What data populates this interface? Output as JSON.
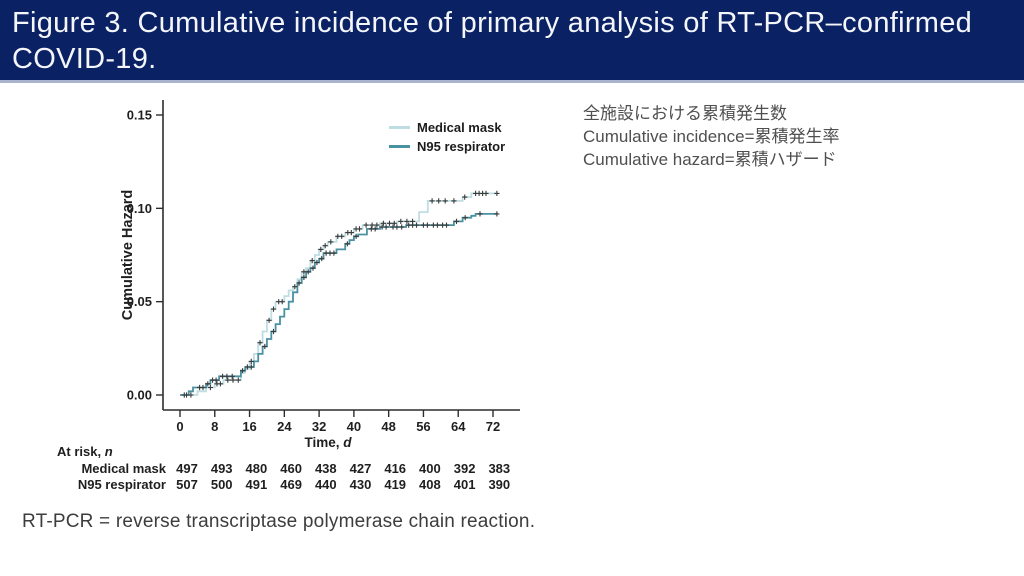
{
  "header": {
    "title": "Figure 3. Cumulative incidence of primary analysis of RT-PCR–confirmed COVID-19.",
    "bg": "#0a2164"
  },
  "notes": {
    "line1": "全施設における累積発生数",
    "line2": "Cumulative incidence=累積発生率",
    "line3": "Cumulative hazard=累積ハザード"
  },
  "footnote": "RT-PCR = reverse transcriptase polymerase chain reaction.",
  "chart_data": {
    "type": "line",
    "subtype": "kaplan-meier-cumulative-hazard-step",
    "title": "",
    "ylabel": "Cumulative Hazard",
    "xlabel_prefix": "Time, ",
    "xlabel_italic": "d",
    "xlim": [
      0,
      72
    ],
    "ylim": [
      0,
      0.15
    ],
    "xticks": [
      0,
      8,
      16,
      24,
      32,
      40,
      48,
      56,
      64,
      72
    ],
    "yticks": [
      "0.00",
      "0.05",
      "0.10",
      "0.15"
    ],
    "grid": false,
    "legend_position": "top-right",
    "axis_color": "#2d2d2d",
    "censor_color": "#3b3b3b",
    "series": [
      {
        "name": "Medical mask",
        "color": "#bedee3",
        "steps": [
          [
            0,
            0
          ],
          [
            4,
            0.002
          ],
          [
            6,
            0.004
          ],
          [
            8,
            0.006
          ],
          [
            10,
            0.008
          ],
          [
            14,
            0.012
          ],
          [
            15,
            0.014
          ],
          [
            16,
            0.018
          ],
          [
            17,
            0.022
          ],
          [
            18,
            0.028
          ],
          [
            19,
            0.034
          ],
          [
            20,
            0.04
          ],
          [
            21,
            0.046
          ],
          [
            22,
            0.05
          ],
          [
            24,
            0.053
          ],
          [
            25,
            0.056
          ],
          [
            26,
            0.058
          ],
          [
            27,
            0.062
          ],
          [
            28,
            0.066
          ],
          [
            29,
            0.068
          ],
          [
            30,
            0.072
          ],
          [
            31,
            0.075
          ],
          [
            32,
            0.078
          ],
          [
            33,
            0.08
          ],
          [
            34,
            0.082
          ],
          [
            36,
            0.085
          ],
          [
            38,
            0.087
          ],
          [
            40,
            0.089
          ],
          [
            42,
            0.091
          ],
          [
            46,
            0.092
          ],
          [
            50,
            0.093
          ],
          [
            55,
            0.098
          ],
          [
            57,
            0.104
          ],
          [
            65,
            0.106
          ],
          [
            67,
            0.108
          ],
          [
            73,
            0.108
          ]
        ],
        "censors": [
          [
            1.5,
            0
          ],
          [
            2.5,
            0
          ],
          [
            7,
            0.004
          ],
          [
            8.5,
            0.006
          ],
          [
            9.3,
            0.006
          ],
          [
            11,
            0.008
          ],
          [
            12.2,
            0.008
          ],
          [
            13.4,
            0.008
          ],
          [
            16.4,
            0.018
          ],
          [
            18.4,
            0.028
          ],
          [
            20.5,
            0.04
          ],
          [
            21.5,
            0.046
          ],
          [
            22.7,
            0.05
          ],
          [
            23.5,
            0.05
          ],
          [
            26.4,
            0.058
          ],
          [
            28.5,
            0.066
          ],
          [
            30.4,
            0.072
          ],
          [
            32.4,
            0.078
          ],
          [
            33.4,
            0.08
          ],
          [
            34.7,
            0.082
          ],
          [
            36.3,
            0.085
          ],
          [
            37.2,
            0.085
          ],
          [
            38.6,
            0.087
          ],
          [
            39.4,
            0.087
          ],
          [
            40.5,
            0.089
          ],
          [
            41.3,
            0.089
          ],
          [
            42.8,
            0.091
          ],
          [
            44.2,
            0.091
          ],
          [
            45.3,
            0.091
          ],
          [
            46.8,
            0.092
          ],
          [
            48.2,
            0.092
          ],
          [
            49.3,
            0.092
          ],
          [
            50.8,
            0.093
          ],
          [
            52.2,
            0.093
          ],
          [
            53.5,
            0.093
          ],
          [
            58,
            0.104
          ],
          [
            59.5,
            0.104
          ],
          [
            61,
            0.104
          ],
          [
            63,
            0.104
          ],
          [
            65.5,
            0.106
          ],
          [
            68,
            0.108
          ],
          [
            68.8,
            0.108
          ],
          [
            69.6,
            0.108
          ],
          [
            70.4,
            0.108
          ],
          [
            72.9,
            0.108
          ]
        ]
      },
      {
        "name": "N95 respirator",
        "color": "#4a92a1",
        "steps": [
          [
            0,
            0
          ],
          [
            2,
            0.002
          ],
          [
            3,
            0.004
          ],
          [
            6,
            0.006
          ],
          [
            7,
            0.008
          ],
          [
            9,
            0.01
          ],
          [
            14,
            0.013
          ],
          [
            15,
            0.015
          ],
          [
            17,
            0.018
          ],
          [
            18,
            0.022
          ],
          [
            19,
            0.026
          ],
          [
            20,
            0.03
          ],
          [
            21,
            0.034
          ],
          [
            22,
            0.038
          ],
          [
            23,
            0.042
          ],
          [
            24,
            0.046
          ],
          [
            25,
            0.05
          ],
          [
            26,
            0.055
          ],
          [
            27,
            0.06
          ],
          [
            28,
            0.063
          ],
          [
            29,
            0.066
          ],
          [
            30,
            0.068
          ],
          [
            31,
            0.071
          ],
          [
            32,
            0.073
          ],
          [
            33,
            0.076
          ],
          [
            36,
            0.078
          ],
          [
            38,
            0.081
          ],
          [
            39,
            0.083
          ],
          [
            40,
            0.085
          ],
          [
            41,
            0.086
          ],
          [
            43,
            0.089
          ],
          [
            46,
            0.09
          ],
          [
            52,
            0.091
          ],
          [
            63,
            0.093
          ],
          [
            65,
            0.095
          ],
          [
            67,
            0.096
          ],
          [
            68,
            0.097
          ],
          [
            73,
            0.097
          ]
        ],
        "censors": [
          [
            1,
            0
          ],
          [
            4.5,
            0.004
          ],
          [
            5.3,
            0.004
          ],
          [
            6.4,
            0.006
          ],
          [
            7.5,
            0.008
          ],
          [
            8.3,
            0.008
          ],
          [
            9.8,
            0.01
          ],
          [
            10.8,
            0.01
          ],
          [
            12,
            0.01
          ],
          [
            14.4,
            0.013
          ],
          [
            15.5,
            0.015
          ],
          [
            16.4,
            0.015
          ],
          [
            19.5,
            0.026
          ],
          [
            21.5,
            0.034
          ],
          [
            27.4,
            0.06
          ],
          [
            28.5,
            0.063
          ],
          [
            29.5,
            0.066
          ],
          [
            30.6,
            0.068
          ],
          [
            31.5,
            0.071
          ],
          [
            32.6,
            0.073
          ],
          [
            33.6,
            0.076
          ],
          [
            34.5,
            0.076
          ],
          [
            35.4,
            0.076
          ],
          [
            38.5,
            0.081
          ],
          [
            40.5,
            0.085
          ],
          [
            44,
            0.089
          ],
          [
            44.9,
            0.089
          ],
          [
            46.5,
            0.09
          ],
          [
            47.4,
            0.09
          ],
          [
            49,
            0.09
          ],
          [
            49.9,
            0.09
          ],
          [
            51,
            0.09
          ],
          [
            52.6,
            0.091
          ],
          [
            53.5,
            0.091
          ],
          [
            54.4,
            0.091
          ],
          [
            56,
            0.091
          ],
          [
            56.9,
            0.091
          ],
          [
            58.3,
            0.091
          ],
          [
            59.2,
            0.091
          ],
          [
            60.4,
            0.091
          ],
          [
            61.3,
            0.091
          ],
          [
            63.6,
            0.093
          ],
          [
            65.6,
            0.095
          ],
          [
            69,
            0.097
          ],
          [
            72.9,
            0.097
          ]
        ]
      }
    ],
    "at_risk": {
      "label_prefix": "At risk, ",
      "label_italic": "n",
      "times": [
        0,
        8,
        16,
        24,
        32,
        40,
        48,
        56,
        64,
        72
      ],
      "rows": [
        {
          "name": "Medical mask",
          "values": [
            497,
            493,
            480,
            460,
            438,
            427,
            416,
            400,
            392,
            383
          ]
        },
        {
          "name": "N95 respirator",
          "values": [
            507,
            500,
            491,
            469,
            440,
            430,
            419,
            408,
            401,
            390
          ]
        }
      ]
    }
  }
}
